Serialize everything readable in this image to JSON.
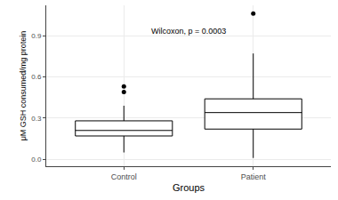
{
  "chart_data": {
    "type": "box",
    "x_label": "Groups",
    "y_label": "μM GSH consumed/mg protein",
    "annotation": "Wilcoxon, p = 0.0003",
    "categories": [
      "Control",
      "Patient"
    ],
    "series": [
      {
        "name": "Control",
        "color": "#000000",
        "lowerfence": 0.05,
        "q1": 0.17,
        "median": 0.21,
        "q3": 0.28,
        "upperfence": 0.39,
        "outliers": [
          0.49,
          0.53
        ]
      },
      {
        "name": "Patient",
        "color": "#000000",
        "lowerfence": 0.01,
        "q1": 0.22,
        "median": 0.34,
        "q3": 0.44,
        "upperfence": 0.77,
        "outliers": [
          1.06
        ]
      }
    ],
    "ylim": [
      -0.05,
      1.12
    ],
    "yticks": [
      {
        "value": 0,
        "label": "0.0"
      },
      {
        "value": 0.3,
        "label": "0.3"
      },
      {
        "value": 0.6,
        "label": "0.6"
      },
      {
        "value": 0.9,
        "label": "0.9"
      }
    ],
    "grid": true
  }
}
